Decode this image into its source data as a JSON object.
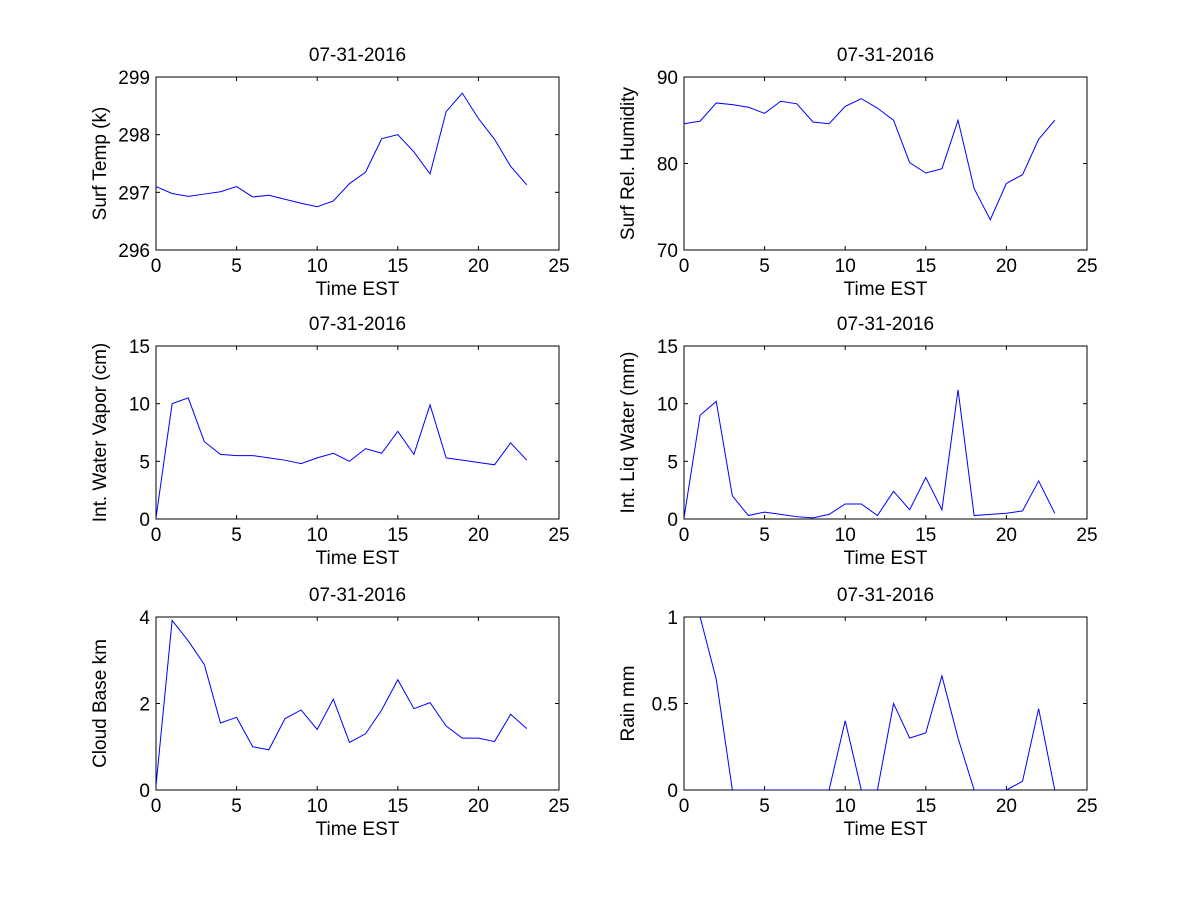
{
  "chart_data": [
    {
      "type": "line",
      "title": "07-31-2016",
      "xlabel": "Time EST",
      "ylabel": "Surf Temp (k)",
      "xlim": [
        0,
        25
      ],
      "ylim": [
        296,
        299
      ],
      "xticks": [
        0,
        5,
        10,
        15,
        20,
        25
      ],
      "yticks": [
        296,
        297,
        298,
        299
      ],
      "x": [
        0,
        1,
        2,
        3,
        4,
        5,
        6,
        7,
        8,
        9,
        10,
        11,
        12,
        13,
        14,
        15,
        16,
        17,
        18,
        19,
        20,
        21,
        22,
        23
      ],
      "values": [
        297.1,
        296.98,
        296.93,
        296.97,
        297.01,
        297.1,
        296.92,
        296.95,
        296.88,
        296.81,
        296.75,
        296.85,
        297.15,
        297.35,
        297.93,
        298.0,
        297.7,
        297.32,
        298.4,
        298.72,
        298.28,
        297.92,
        297.45,
        297.13
      ]
    },
    {
      "type": "line",
      "title": "07-31-2016",
      "xlabel": "Time EST",
      "ylabel": "Surf Rel. Humidity",
      "xlim": [
        0,
        25
      ],
      "ylim": [
        70,
        90
      ],
      "xticks": [
        0,
        5,
        10,
        15,
        20,
        25
      ],
      "yticks": [
        70,
        80,
        90
      ],
      "x": [
        0,
        1,
        2,
        3,
        4,
        5,
        6,
        7,
        8,
        9,
        10,
        11,
        12,
        13,
        14,
        15,
        16,
        17,
        18,
        19,
        20,
        21,
        22,
        23
      ],
      "values": [
        84.6,
        84.9,
        87.0,
        86.8,
        86.5,
        85.8,
        87.2,
        86.9,
        84.8,
        84.6,
        86.6,
        87.5,
        86.4,
        85.0,
        80.1,
        78.9,
        79.4,
        85.0,
        77.1,
        73.5,
        77.7,
        78.7,
        82.8,
        85.0
      ]
    },
    {
      "type": "line",
      "title": "07-31-2016",
      "xlabel": "Time EST",
      "ylabel": "Int. Water Vapor (cm)",
      "xlim": [
        0,
        25
      ],
      "ylim": [
        0,
        15
      ],
      "xticks": [
        0,
        5,
        10,
        15,
        20,
        25
      ],
      "yticks": [
        0,
        5,
        10,
        15
      ],
      "x": [
        0,
        1,
        2,
        3,
        4,
        5,
        6,
        7,
        8,
        9,
        10,
        11,
        12,
        13,
        14,
        15,
        16,
        17,
        18,
        19,
        20,
        21,
        22,
        23
      ],
      "values": [
        0.1,
        10.0,
        10.5,
        6.7,
        5.6,
        5.5,
        5.5,
        5.3,
        5.1,
        4.8,
        5.3,
        5.7,
        5.0,
        6.1,
        5.7,
        7.6,
        5.6,
        9.9,
        5.3,
        5.1,
        4.9,
        4.7,
        6.6,
        5.1
      ]
    },
    {
      "type": "line",
      "title": "07-31-2016",
      "xlabel": "Time EST",
      "ylabel": "Int. Liq Water (mm)",
      "xlim": [
        0,
        25
      ],
      "ylim": [
        0,
        15
      ],
      "xticks": [
        0,
        5,
        10,
        15,
        20,
        25
      ],
      "yticks": [
        0,
        5,
        10,
        15
      ],
      "x": [
        0,
        1,
        2,
        3,
        4,
        5,
        6,
        7,
        8,
        9,
        10,
        11,
        12,
        13,
        14,
        15,
        16,
        17,
        18,
        19,
        20,
        21,
        22,
        23
      ],
      "values": [
        0.1,
        9.0,
        10.2,
        2.0,
        0.3,
        0.6,
        0.4,
        0.2,
        0.1,
        0.4,
        1.3,
        1.3,
        0.3,
        2.4,
        0.8,
        3.6,
        0.8,
        11.2,
        0.3,
        0.4,
        0.5,
        0.7,
        3.3,
        0.5
      ]
    },
    {
      "type": "line",
      "title": "07-31-2016",
      "xlabel": "Time EST",
      "ylabel": "Cloud Base km",
      "xlim": [
        0,
        25
      ],
      "ylim": [
        0,
        4
      ],
      "xticks": [
        0,
        5,
        10,
        15,
        20,
        25
      ],
      "yticks": [
        0,
        2,
        4
      ],
      "x": [
        0,
        1,
        2,
        3,
        4,
        5,
        6,
        7,
        8,
        9,
        10,
        11,
        12,
        13,
        14,
        15,
        16,
        17,
        18,
        19,
        20,
        21,
        22,
        23
      ],
      "values": [
        0.1,
        3.92,
        3.45,
        2.9,
        1.55,
        1.68,
        1.0,
        0.93,
        1.65,
        1.85,
        1.4,
        2.1,
        1.1,
        1.3,
        1.85,
        2.55,
        1.88,
        2.02,
        1.48,
        1.2,
        1.2,
        1.12,
        1.75,
        1.42
      ]
    },
    {
      "type": "line",
      "title": "07-31-2016",
      "xlabel": "Time EST",
      "ylabel": "Rain mm",
      "xlim": [
        0,
        25
      ],
      "ylim": [
        0,
        1
      ],
      "xticks": [
        0,
        5,
        10,
        15,
        20,
        25
      ],
      "yticks": [
        0,
        0.5,
        1
      ],
      "ytick_labels": [
        "0",
        "0.5",
        "1"
      ],
      "x": [
        0,
        1,
        2,
        3,
        4,
        5,
        6,
        7,
        8,
        9,
        10,
        11,
        12,
        13,
        14,
        15,
        16,
        17,
        18,
        19,
        20,
        21,
        22,
        23
      ],
      "values": [
        null,
        1.0,
        0.64,
        0,
        0,
        0,
        0,
        0,
        0,
        0,
        0.4,
        0,
        0,
        0.5,
        0.3,
        0.33,
        0.66,
        0.3,
        0,
        0,
        0,
        0.05,
        0.47,
        0
      ],
      "note": "first point above axis range (clipped)"
    }
  ],
  "colors": {
    "line": "#0000ff",
    "axis": "#000000",
    "background": "#ffffff"
  }
}
